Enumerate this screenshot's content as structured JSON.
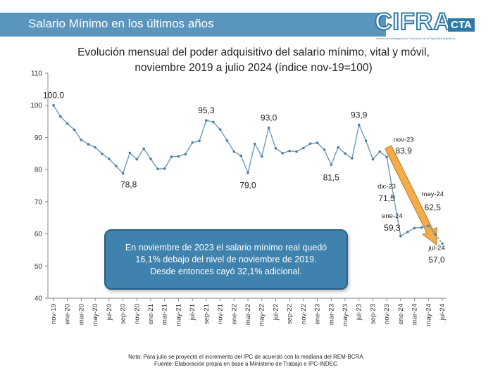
{
  "header": {
    "title": "Salario Mínimo en los últimos años"
  },
  "logo": {
    "main": "CIFRA",
    "suffix": "CTA",
    "tagline": "Centro de Investigación y Formación de la República Argentina"
  },
  "chart_data": {
    "type": "line",
    "title": "Evolución mensual del poder adquisitivo del salario mínimo, vital y móvil,",
    "subtitle": "noviembre 2019 a julio 2024 (índice nov-19=100)",
    "ylim": [
      40,
      110
    ],
    "yticks": [
      40,
      50,
      60,
      70,
      80,
      90,
      100,
      110
    ],
    "grid": false,
    "x": [
      "nov-19",
      "dic-19",
      "ene-20",
      "feb-20",
      "mar-20",
      "abr-20",
      "may-20",
      "jun-20",
      "jul-20",
      "ago-20",
      "sep-20",
      "oct-20",
      "nov-20",
      "dic-20",
      "ene-21",
      "feb-21",
      "mar-21",
      "abr-21",
      "may-21",
      "jun-21",
      "jul-21",
      "ago-21",
      "sep-21",
      "oct-21",
      "nov-21",
      "dic-21",
      "ene-22",
      "feb-22",
      "mar-22",
      "abr-22",
      "may-22",
      "jun-22",
      "jul-22",
      "ago-22",
      "sep-22",
      "oct-22",
      "nov-22",
      "dic-22",
      "ene-23",
      "feb-23",
      "mar-23",
      "abr-23",
      "may-23",
      "jun-23",
      "jul-23",
      "ago-23",
      "sep-23",
      "oct-23",
      "nov-23",
      "dic-23",
      "ene-24",
      "feb-24",
      "mar-24",
      "abr-24",
      "may-24",
      "jun-24",
      "jul-24"
    ],
    "xtick_labels": [
      "nov-19",
      "ene-20",
      "mar-20",
      "may-20",
      "jul-20",
      "sep-20",
      "nov-20",
      "ene-21",
      "mar-21",
      "may-21",
      "jul-21",
      "sep-21",
      "nov-21",
      "ene-22",
      "mar-22",
      "may-22",
      "jul-22",
      "sep-22",
      "nov-22",
      "ene-23",
      "mar-23",
      "may-23",
      "jul-23",
      "sep-23",
      "nov-23",
      "ene-24",
      "mar-24",
      "may-24",
      "jul-24"
    ],
    "series": [
      {
        "values": [
          100.0,
          96.5,
          94.3,
          92.4,
          89.2,
          87.9,
          86.9,
          84.9,
          83.3,
          81.1,
          78.8,
          85.2,
          83.2,
          86.5,
          83.3,
          80.2,
          80.3,
          84.0,
          84.1,
          84.8,
          88.4,
          88.9,
          95.3,
          94.8,
          92.5,
          89.0,
          85.6,
          84.3,
          79.0,
          88.0,
          84.1,
          93.0,
          86.6,
          85.1,
          85.8,
          85.6,
          86.7,
          88.1,
          88.3,
          86.2,
          81.5,
          86.9,
          85.0,
          83.5,
          93.9,
          89.0,
          83.2,
          85.6,
          83.9,
          71.5,
          59.3,
          60.6,
          61.8,
          62.0,
          62.5,
          59.8,
          57.0
        ]
      }
    ],
    "annotations": [
      {
        "x": "nov-19",
        "text": "100,0"
      },
      {
        "x": "sep-20",
        "text": "78,8"
      },
      {
        "x": "sep-21",
        "text": "95,3"
      },
      {
        "x": "mar-22",
        "text": "79,0"
      },
      {
        "x": "jun-22",
        "text": "93,0"
      },
      {
        "x": "mar-23",
        "text": "81,5"
      },
      {
        "x": "jul-23",
        "text": "93,9"
      },
      {
        "x": "nov-23",
        "text": "nov-23"
      },
      {
        "x": "nov-23",
        "text": "83,9"
      },
      {
        "x": "dic-23",
        "text": "dic-23"
      },
      {
        "x": "dic-23",
        "text": "71,5"
      },
      {
        "x": "ene-24",
        "text": "ene-24"
      },
      {
        "x": "ene-24",
        "text": "59,3"
      },
      {
        "x": "may-24",
        "text": "may-24"
      },
      {
        "x": "may-24",
        "text": "62,5"
      },
      {
        "x": "jul-24",
        "text": "jul-24"
      },
      {
        "x": "jul-24",
        "text": "57,0"
      }
    ],
    "colors": {
      "line": "#6e9ab8",
      "marker": "#4c7fa6",
      "arrow": "#f2a53a",
      "arrow_edge": "#b26f12"
    }
  },
  "callout": {
    "line1": "En noviembre de 2023 el salario mínimo real quedó",
    "line2": "16,1% debajo del nivel de noviembre de 2019.",
    "line3": "Desde entonces cayó 32,1% adicional."
  },
  "footnote": {
    "line1": "Nota: Para julio se proyectó el incremento del IPC de acuerdo con la mediana del REM-BCRA.",
    "line2": "Fuente: Elaboración propia en base a Ministerio de Trabajo e IPC-INDEC."
  }
}
